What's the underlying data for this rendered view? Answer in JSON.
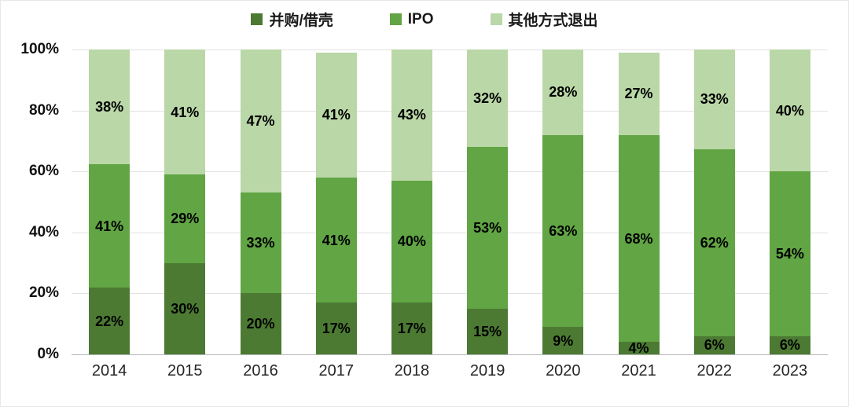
{
  "chart_data": {
    "type": "bar",
    "stacked": true,
    "percent_stacked": true,
    "title": "",
    "xlabel": "",
    "ylabel": "",
    "ylim": [
      0,
      100
    ],
    "grid": true,
    "legend_position": "top",
    "categories": [
      "2014",
      "2015",
      "2016",
      "2017",
      "2018",
      "2019",
      "2020",
      "2021",
      "2022",
      "2023"
    ],
    "series": [
      {
        "name": "并购/借壳",
        "color": "#4c7a33",
        "values": [
          22,
          30,
          20,
          17,
          17,
          15,
          9,
          4,
          6,
          6
        ],
        "labels": [
          "22%",
          "30%",
          "20%",
          "17%",
          "17%",
          "15%",
          "9%",
          "4%",
          "6%",
          "6%"
        ]
      },
      {
        "name": "IPO",
        "color": "#61a544",
        "values": [
          41,
          29,
          33,
          41,
          40,
          53,
          63,
          68,
          62,
          54
        ],
        "labels": [
          "41%",
          "29%",
          "33%",
          "41%",
          "40%",
          "53%",
          "63%",
          "68%",
          "62%",
          "54%"
        ]
      },
      {
        "name": "其他方式退出",
        "color": "#bad7a7",
        "values": [
          38,
          41,
          47,
          41,
          43,
          32,
          28,
          27,
          33,
          40
        ],
        "labels": [
          "38%",
          "41%",
          "47%",
          "41%",
          "43%",
          "32%",
          "28%",
          "27%",
          "33%",
          "40%"
        ]
      }
    ],
    "yticks": [
      {
        "value": 0,
        "label": "0%"
      },
      {
        "value": 20,
        "label": "20%"
      },
      {
        "value": 40,
        "label": "40%"
      },
      {
        "value": 60,
        "label": "60%"
      },
      {
        "value": 80,
        "label": "80%"
      },
      {
        "value": 100,
        "label": "100%"
      }
    ]
  }
}
